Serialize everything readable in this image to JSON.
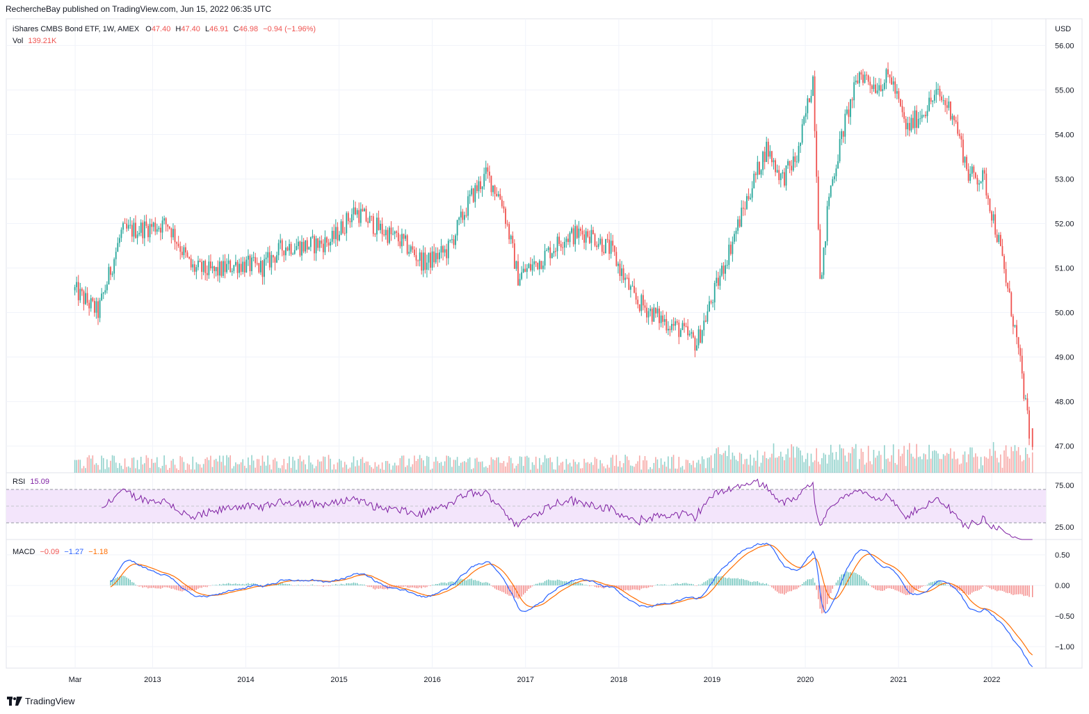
{
  "header": {
    "published": "RechercheBay published on TradingView.com, Jun 15, 2022 06:35 UTC"
  },
  "price_legend": {
    "symbol": "iShares CMBS Bond ETF, 1W, AMEX",
    "o_label": "O",
    "o_value": "47.40",
    "h_label": "H",
    "h_value": "47.40",
    "l_label": "L",
    "l_value": "46.91",
    "c_label": "C",
    "c_value": "46.98",
    "change": "−0.94 (−1.96%)",
    "vol_label": "Vol",
    "vol_value": "139.21K",
    "currency": "USD"
  },
  "rsi_legend": {
    "label": "RSI",
    "value": "15.09"
  },
  "macd_legend": {
    "label": "MACD",
    "hist": "−0.09",
    "macd": "−1.27",
    "signal": "−1.18"
  },
  "footer": {
    "brand": "TradingView"
  },
  "colors": {
    "up": "#26a69a",
    "down": "#ef5350",
    "rsi": "#7e1fa2",
    "rsi_band": "#f3e5fb",
    "macd": "#2962ff",
    "signal": "#ff6d00",
    "grid": "#f0f3fa",
    "text": "#131722"
  },
  "chart_data": [
    {
      "type": "candlestick",
      "title": "iShares CMBS Bond ETF, 1W, AMEX",
      "x_tick_labels": [
        "Mar",
        "2013",
        "2014",
        "2015",
        "2016",
        "2017",
        "2018",
        "2019",
        "2020",
        "2021",
        "2022"
      ],
      "y_tick_labels": [
        "56.00",
        "55.00",
        "54.00",
        "53.00",
        "52.00",
        "51.00",
        "50.00",
        "49.00",
        "48.00",
        "47.00"
      ],
      "ylim": [
        46.4,
        56.6
      ],
      "anchor_closes": {
        "dates": [
          "2012-03",
          "2012-06",
          "2012-09",
          "2012-12",
          "2013-03",
          "2013-06",
          "2013-09",
          "2013-12",
          "2014-03",
          "2014-06",
          "2014-09",
          "2014-12",
          "2015-03",
          "2015-06",
          "2015-09",
          "2015-12",
          "2016-03",
          "2016-06",
          "2016-08",
          "2016-10",
          "2016-12",
          "2017-03",
          "2017-06",
          "2017-09",
          "2017-12",
          "2018-03",
          "2018-06",
          "2018-09",
          "2018-11",
          "2019-01",
          "2019-03",
          "2019-06",
          "2019-08",
          "2019-10",
          "2019-12",
          "2020-02",
          "2020-03",
          "2020-04",
          "2020-06",
          "2020-08",
          "2020-10",
          "2020-12",
          "2021-02",
          "2021-04",
          "2021-06",
          "2021-08",
          "2021-10",
          "2021-12",
          "2022-02",
          "2022-04",
          "2022-05",
          "2022-06"
        ],
        "close": [
          50.5,
          50.0,
          51.8,
          51.9,
          52.0,
          51.0,
          50.9,
          51.1,
          51.0,
          51.5,
          51.5,
          51.6,
          52.3,
          51.9,
          51.6,
          51.1,
          51.4,
          52.6,
          53.1,
          52.5,
          50.8,
          51.2,
          51.7,
          51.8,
          51.4,
          50.3,
          49.9,
          49.6,
          49.3,
          50.3,
          51.3,
          52.8,
          53.7,
          53.0,
          53.5,
          55.3,
          50.5,
          52.6,
          54.2,
          55.4,
          55.1,
          55.3,
          54.1,
          54.5,
          54.9,
          54.5,
          53.1,
          53.0,
          51.5,
          49.6,
          48.4,
          46.98
        ]
      },
      "last": {
        "open": 47.4,
        "high": 47.4,
        "low": 46.91,
        "close": 46.98
      }
    },
    {
      "type": "bar",
      "title": "Vol",
      "series": [
        {
          "name": "Vol",
          "last_value": "139.21K"
        }
      ]
    },
    {
      "type": "line",
      "title": "RSI",
      "y_tick_labels": [
        "75.00",
        "25.00"
      ],
      "ylim": [
        10,
        90
      ],
      "band": [
        30,
        70
      ],
      "last_value": 15.09
    },
    {
      "type": "line",
      "title": "MACD",
      "y_tick_labels": [
        "0.50",
        "0.00",
        "−0.50",
        "−1.00"
      ],
      "ylim": [
        -1.35,
        0.75
      ],
      "last": {
        "histogram": -0.09,
        "macd": -1.27,
        "signal": -1.18
      }
    }
  ]
}
